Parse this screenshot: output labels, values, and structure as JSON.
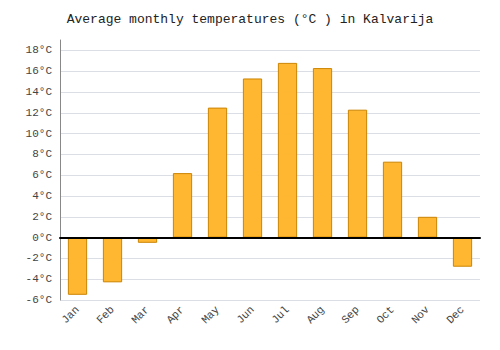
{
  "chart_data": {
    "type": "bar",
    "title": "Average monthly temperatures (°C ) in Kalvarija",
    "categories": [
      "Jan",
      "Feb",
      "Mar",
      "Apr",
      "May",
      "Jun",
      "Jul",
      "Aug",
      "Sep",
      "Oct",
      "Nov",
      "Dec"
    ],
    "values": [
      -5.5,
      -4.3,
      -0.5,
      6.2,
      12.5,
      15.3,
      16.8,
      16.3,
      12.3,
      7.3,
      2.0,
      -2.8
    ],
    "color": "#FFB732",
    "ylim": [
      -6,
      19
    ],
    "yticks": [
      {
        "value": -6,
        "label": "-6°C"
      },
      {
        "value": -4,
        "label": "-4°C"
      },
      {
        "value": -2,
        "label": "-2°C"
      },
      {
        "value": 0,
        "label": "0°C"
      },
      {
        "value": 2,
        "label": "2°C"
      },
      {
        "value": 4,
        "label": "4°C"
      },
      {
        "value": 6,
        "label": "6°C"
      },
      {
        "value": 8,
        "label": "8°C"
      },
      {
        "value": 10,
        "label": "10°C"
      },
      {
        "value": 12,
        "label": "12°C"
      },
      {
        "value": 14,
        "label": "14°C"
      },
      {
        "value": 16,
        "label": "16°C"
      },
      {
        "value": 18,
        "label": "18°C"
      }
    ],
    "grid": true
  }
}
